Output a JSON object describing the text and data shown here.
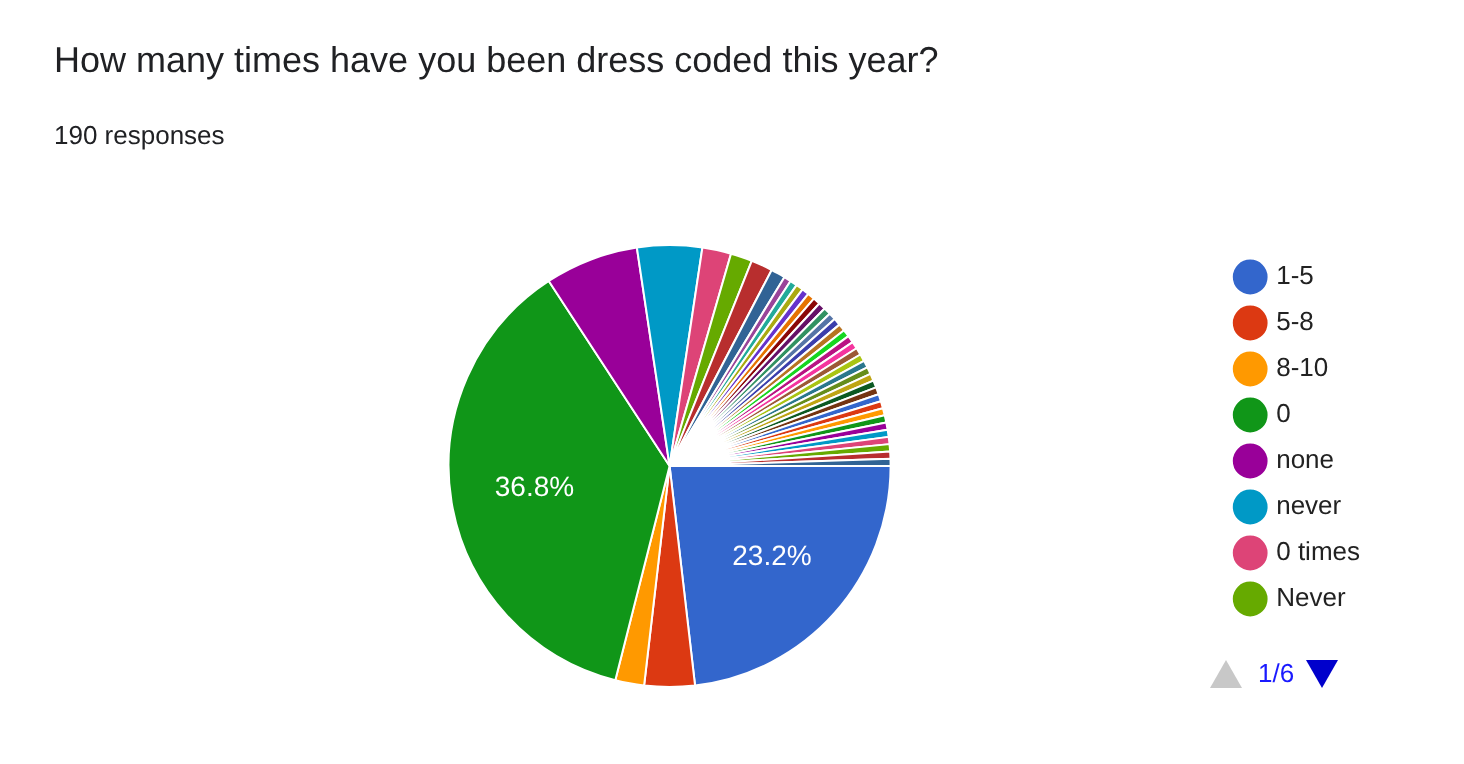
{
  "chart_data": {
    "type": "pie",
    "title": "How many times have you been dress coded this year?",
    "subtitle": "190 responses",
    "categories": [
      "1-5",
      "5-8",
      "8-10",
      "0",
      "none",
      "never",
      "0 times",
      "Never",
      null,
      null,
      null,
      null,
      null,
      null,
      null,
      null,
      null,
      null,
      null,
      null,
      null,
      null,
      null,
      null,
      null,
      null,
      null,
      null,
      null,
      null,
      null,
      null,
      null,
      null,
      null,
      null,
      null,
      null,
      null,
      null,
      null
    ],
    "values": [
      23.16,
      3.68,
      2.11,
      36.84,
      6.84,
      4.74,
      2.11,
      1.58,
      1.58,
      1.05,
      0.526,
      0.526,
      0.526,
      0.526,
      0.526,
      0.526,
      0.526,
      0.526,
      0.526,
      0.526,
      0.526,
      0.526,
      0.526,
      0.526,
      0.526,
      0.526,
      0.526,
      0.526,
      0.526,
      0.526,
      0.526,
      0.526,
      0.526,
      0.526,
      0.526,
      0.526,
      0.526,
      0.526,
      0.526,
      0.526,
      0.526
    ],
    "value_labels": [
      "23.2%",
      null,
      null,
      "36.8%",
      null,
      null,
      null,
      null,
      null,
      null,
      null,
      null,
      null,
      null,
      null,
      null,
      null,
      null,
      null,
      null,
      null,
      null,
      null,
      null,
      null,
      null,
      null,
      null,
      null,
      null,
      null,
      null,
      null,
      null,
      null,
      null,
      null,
      null,
      null,
      null,
      null
    ],
    "colors": [
      "#3366cc",
      "#dc3912",
      "#ff9900",
      "#109618",
      "#990099",
      "#0099c6",
      "#dd4477",
      "#66aa00",
      "#b82e2e",
      "#316395",
      "#994499",
      "#22aa99",
      "#aaaa11",
      "#6633cc",
      "#e67300",
      "#8b0707",
      "#651067",
      "#329262",
      "#5574a6",
      "#3b3eac",
      "#b77322",
      "#16d620",
      "#b91383",
      "#f4359e",
      "#9c5935",
      "#a9c413",
      "#2a778d",
      "#668d1c",
      "#bea413",
      "#0c5922",
      "#743411",
      "#3366cc",
      "#dc3912",
      "#ff9900",
      "#109618",
      "#990099",
      "#0099c6",
      "#dd4477",
      "#66aa00",
      "#b82e2e",
      "#316395"
    ],
    "legend": "right",
    "annotations": [
      "1/6"
    ]
  }
}
